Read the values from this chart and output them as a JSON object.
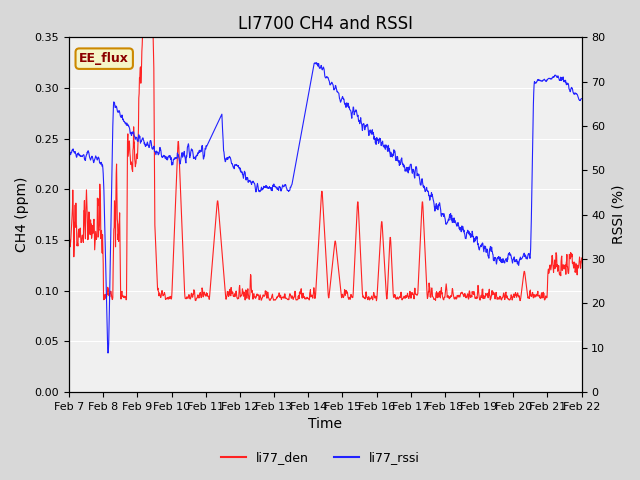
{
  "title": "LI7700 CH4 and RSSI",
  "ylabel_left": "CH4 (ppm)",
  "ylabel_right": "RSSI (%)",
  "xlabel": "Time",
  "ylim_left": [
    0.0,
    0.35
  ],
  "ylim_right": [
    0,
    80
  ],
  "yticks_left": [
    0.0,
    0.05,
    0.1,
    0.15,
    0.2,
    0.25,
    0.3,
    0.35
  ],
  "yticks_right": [
    0,
    10,
    20,
    30,
    40,
    50,
    60,
    70,
    80
  ],
  "xtick_labels": [
    "Feb 7",
    "Feb 8",
    "Feb 9",
    "Feb 10",
    "Feb 11",
    "Feb 12",
    "Feb 13",
    "Feb 14",
    "Feb 15",
    "Feb 16",
    "Feb 17",
    "Feb 18",
    "Feb 19",
    "Feb 20",
    "Feb 21",
    "Feb 22"
  ],
  "legend_labels": [
    "li77_den",
    "li77_rssi"
  ],
  "legend_colors": [
    "#ff2222",
    "#2222ff"
  ],
  "line_color_ch4": "#ff2222",
  "line_color_rssi": "#2222ff",
  "annotation_text": "EE_flux",
  "annotation_color": "#cc8800",
  "bg_color": "#e8e8e8",
  "plot_bg_color": "#f0f0f0",
  "title_fontsize": 12,
  "axis_label_fontsize": 10,
  "tick_label_fontsize": 8,
  "legend_fontsize": 9
}
